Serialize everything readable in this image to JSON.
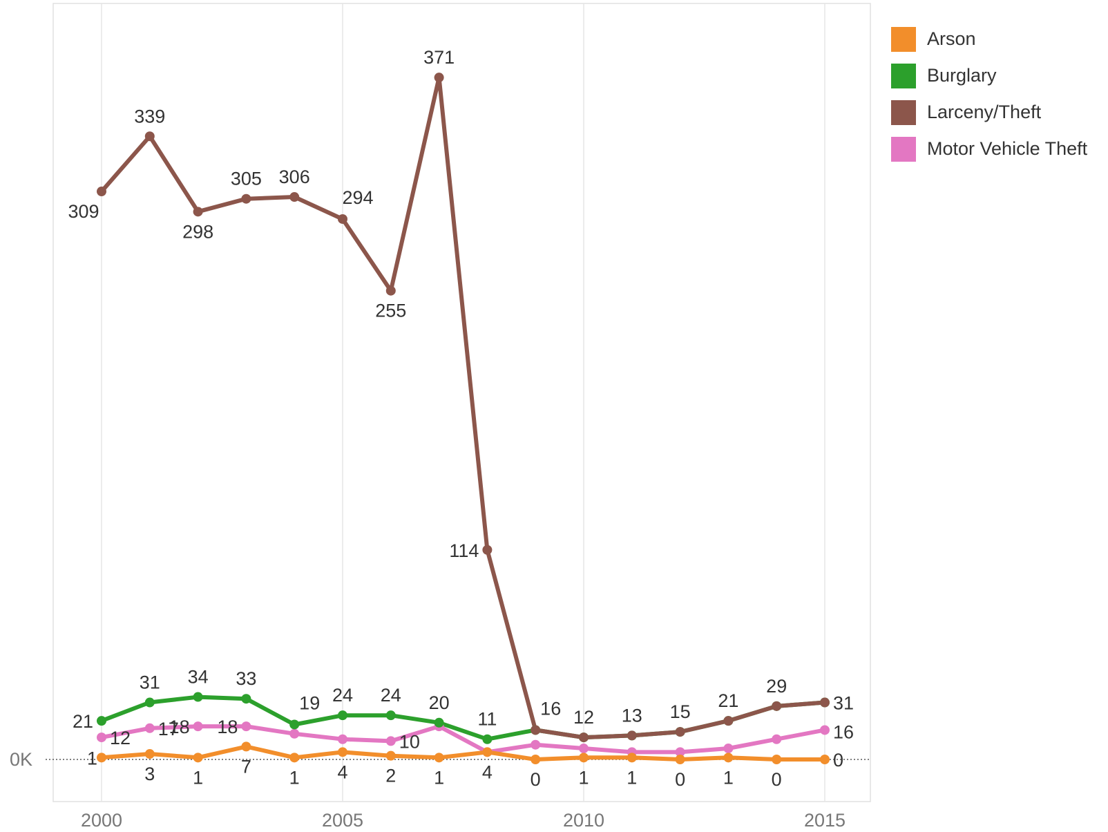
{
  "chart_data": {
    "type": "line",
    "x": [
      2000,
      2001,
      2002,
      2003,
      2004,
      2005,
      2006,
      2007,
      2008,
      2009,
      2010,
      2011,
      2012,
      2013,
      2014,
      2015
    ],
    "xticks": [
      "2000",
      "2005",
      "2010",
      "2015"
    ],
    "yticks": [
      "0K"
    ],
    "series": [
      {
        "name": "Arson",
        "color": "#F28E2B",
        "values": [
          1,
          3,
          1,
          7,
          1,
          4,
          2,
          1,
          4,
          0,
          1,
          1,
          0,
          1,
          0,
          0
        ]
      },
      {
        "name": "Burglary",
        "color": "#2CA02C",
        "values": [
          21,
          31,
          34,
          33,
          19,
          24,
          24,
          20,
          11,
          16,
          12,
          13,
          15,
          21,
          29,
          31
        ]
      },
      {
        "name": "Larceny/Theft",
        "color": "#8C564B",
        "values": [
          309,
          339,
          298,
          305,
          306,
          294,
          255,
          371,
          114,
          16,
          12,
          13,
          15,
          21,
          29,
          31
        ]
      },
      {
        "name": "Motor Vehicle Theft",
        "color": "#E377C2",
        "values": [
          12,
          17,
          18,
          18,
          14,
          11,
          10,
          18,
          4,
          8,
          6,
          4,
          4,
          6,
          11,
          16
        ]
      }
    ],
    "data_labels": [
      {
        "text": "309",
        "x": 2000,
        "y": 309,
        "pos": "below-left"
      },
      {
        "text": "339",
        "x": 2001,
        "y": 339,
        "pos": "above"
      },
      {
        "text": "298",
        "x": 2002,
        "y": 298,
        "pos": "below"
      },
      {
        "text": "305",
        "x": 2003,
        "y": 305,
        "pos": "above"
      },
      {
        "text": "306",
        "x": 2004,
        "y": 306,
        "pos": "above"
      },
      {
        "text": "294",
        "x": 2005,
        "y": 294,
        "pos": "above-right"
      },
      {
        "text": "255",
        "x": 2006,
        "y": 255,
        "pos": "below"
      },
      {
        "text": "371",
        "x": 2007,
        "y": 371,
        "pos": "above"
      },
      {
        "text": "114",
        "x": 2008,
        "y": 114,
        "pos": "left"
      },
      {
        "text": "21",
        "x": 2000,
        "y": 21,
        "pos": "left"
      },
      {
        "text": "31",
        "x": 2001,
        "y": 31,
        "pos": "above"
      },
      {
        "text": "34",
        "x": 2002,
        "y": 34,
        "pos": "above"
      },
      {
        "text": "33",
        "x": 2003,
        "y": 33,
        "pos": "above"
      },
      {
        "text": "19",
        "x": 2004,
        "y": 19,
        "pos": "above-right"
      },
      {
        "text": "24",
        "x": 2005,
        "y": 24,
        "pos": "above"
      },
      {
        "text": "24",
        "x": 2006,
        "y": 24,
        "pos": "above"
      },
      {
        "text": "20",
        "x": 2007,
        "y": 20,
        "pos": "above"
      },
      {
        "text": "11",
        "x": 2008,
        "y": 11,
        "pos": "above"
      },
      {
        "text": "16",
        "x": 2009,
        "y": 16,
        "pos": "above-right"
      },
      {
        "text": "12",
        "x": 2010,
        "y": 12,
        "pos": "above"
      },
      {
        "text": "13",
        "x": 2011,
        "y": 13,
        "pos": "above"
      },
      {
        "text": "15",
        "x": 2012,
        "y": 15,
        "pos": "above"
      },
      {
        "text": "21",
        "x": 2013,
        "y": 21,
        "pos": "above"
      },
      {
        "text": "29",
        "x": 2014,
        "y": 29,
        "pos": "above"
      },
      {
        "text": "31",
        "x": 2015,
        "y": 31,
        "pos": "right"
      },
      {
        "text": "12",
        "x": 2000,
        "y": 12,
        "pos": "right"
      },
      {
        "text": "17",
        "x": 2001,
        "y": 17,
        "pos": "right"
      },
      {
        "text": "18",
        "x": 2002,
        "y": 18,
        "pos": "left"
      },
      {
        "text": "18",
        "x": 2003,
        "y": 18,
        "pos": "left"
      },
      {
        "text": "10",
        "x": 2006,
        "y": 10,
        "pos": "right"
      },
      {
        "text": "16",
        "x": 2015,
        "y": 16,
        "pos": "right-low"
      },
      {
        "text": "1",
        "x": 2000,
        "y": 1,
        "pos": "left-near"
      },
      {
        "text": "3",
        "x": 2001,
        "y": 3,
        "pos": "below"
      },
      {
        "text": "1",
        "x": 2002,
        "y": 1,
        "pos": "below"
      },
      {
        "text": "7",
        "x": 2003,
        "y": 7,
        "pos": "below"
      },
      {
        "text": "1",
        "x": 2004,
        "y": 1,
        "pos": "below"
      },
      {
        "text": "4",
        "x": 2005,
        "y": 4,
        "pos": "below"
      },
      {
        "text": "2",
        "x": 2006,
        "y": 2,
        "pos": "below"
      },
      {
        "text": "1",
        "x": 2007,
        "y": 1,
        "pos": "below"
      },
      {
        "text": "4",
        "x": 2008,
        "y": 4,
        "pos": "below"
      },
      {
        "text": "0",
        "x": 2009,
        "y": 0,
        "pos": "below"
      },
      {
        "text": "1",
        "x": 2010,
        "y": 1,
        "pos": "below"
      },
      {
        "text": "1",
        "x": 2011,
        "y": 1,
        "pos": "below"
      },
      {
        "text": "0",
        "x": 2012,
        "y": 0,
        "pos": "below"
      },
      {
        "text": "1",
        "x": 2013,
        "y": 1,
        "pos": "below"
      },
      {
        "text": "0",
        "x": 2014,
        "y": 0,
        "pos": "below"
      },
      {
        "text": "0",
        "x": 2015,
        "y": 0,
        "pos": "right"
      }
    ],
    "xlim": [
      1999,
      2016
    ],
    "ylim": [
      -12,
      390
    ],
    "grid": "vertical",
    "legend": "top-right",
    "title": "",
    "xlabel": "",
    "ylabel": ""
  }
}
